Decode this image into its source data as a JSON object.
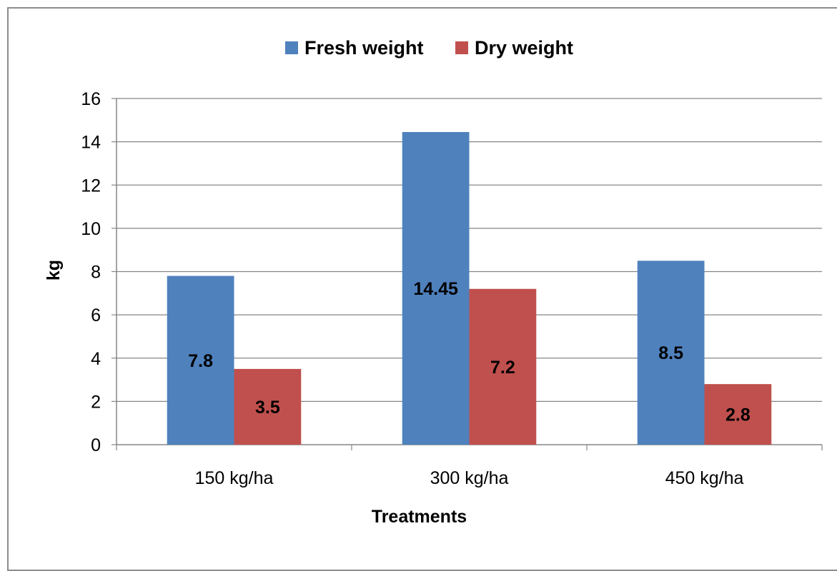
{
  "chart_data": {
    "type": "bar",
    "categories": [
      "150 kg/ha",
      "300 kg/ha",
      "450 kg/ha"
    ],
    "series": [
      {
        "name": "Fresh weight",
        "values": [
          7.8,
          14.45,
          8.5
        ],
        "labels": [
          "7.8",
          "14.45",
          "8.5"
        ],
        "color": "#4F81BD"
      },
      {
        "name": "Dry weight",
        "values": [
          3.5,
          7.2,
          2.8
        ],
        "labels": [
          "3.5",
          "7.2",
          "2.8"
        ],
        "color": "#C0504D"
      }
    ],
    "xlabel": "Treatments",
    "ylabel": "kg",
    "ylim": [
      0,
      16
    ],
    "yticks": [
      0,
      2,
      4,
      6,
      8,
      10,
      12,
      14,
      16
    ],
    "grid": true,
    "legend_position": "top-center"
  }
}
